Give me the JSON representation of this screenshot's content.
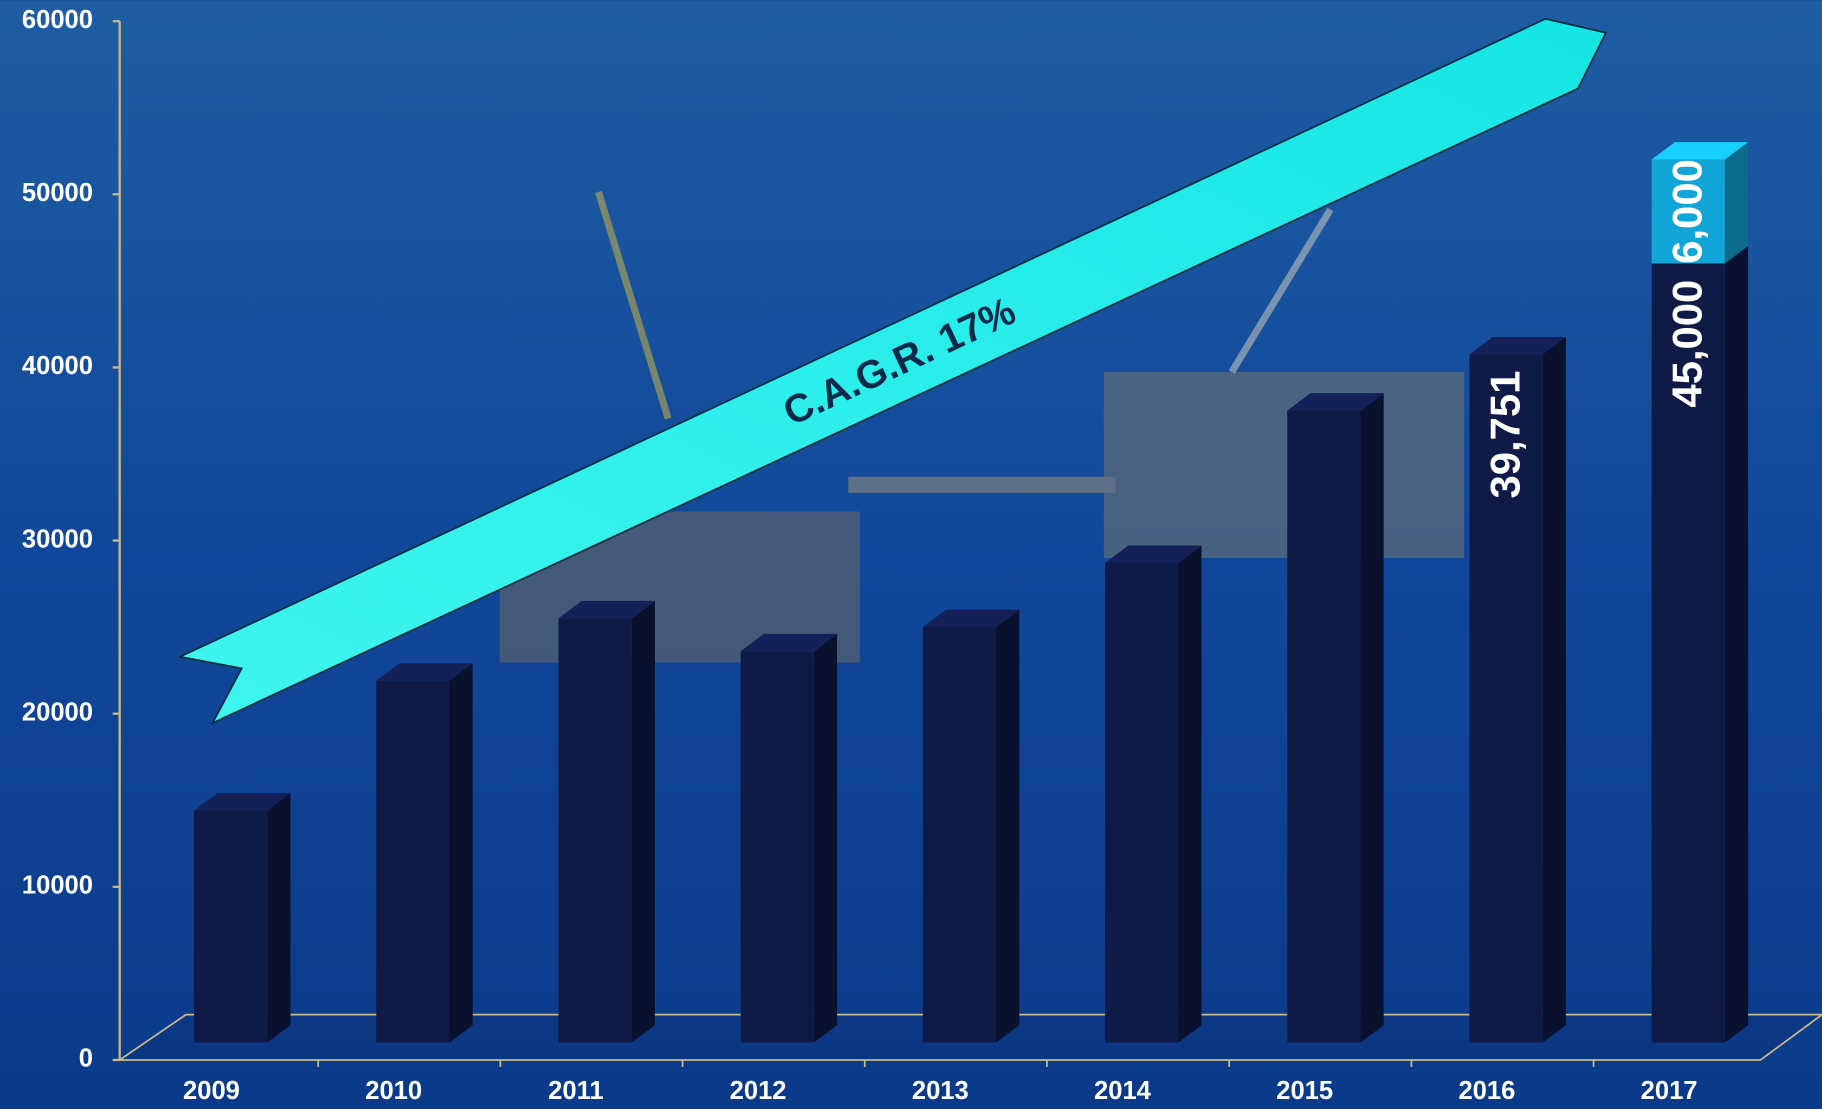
{
  "chart_data": {
    "type": "bar3d",
    "annotation": "C.A.G.R. 17%",
    "categories": [
      "2009",
      "2010",
      "2011",
      "2012",
      "2013",
      "2014",
      "2015",
      "2016",
      "2017"
    ],
    "series": [
      {
        "color": "#101a47",
        "values": [
          13400,
          20900,
          24500,
          22600,
          24000,
          27700,
          36500,
          39751,
          45000
        ],
        "value_labels": [
          null,
          null,
          null,
          null,
          null,
          null,
          null,
          "39,751",
          "45,000"
        ]
      },
      {
        "color": "#12a6d8",
        "values": [
          null,
          null,
          null,
          null,
          null,
          null,
          null,
          null,
          6000
        ],
        "value_labels": [
          null,
          null,
          null,
          null,
          null,
          null,
          null,
          null,
          "6,000"
        ]
      }
    ],
    "ylim": [
      0,
      60000
    ],
    "yticks": [
      0,
      10000,
      20000,
      30000,
      40000,
      50000,
      60000
    ],
    "stacked": true
  }
}
